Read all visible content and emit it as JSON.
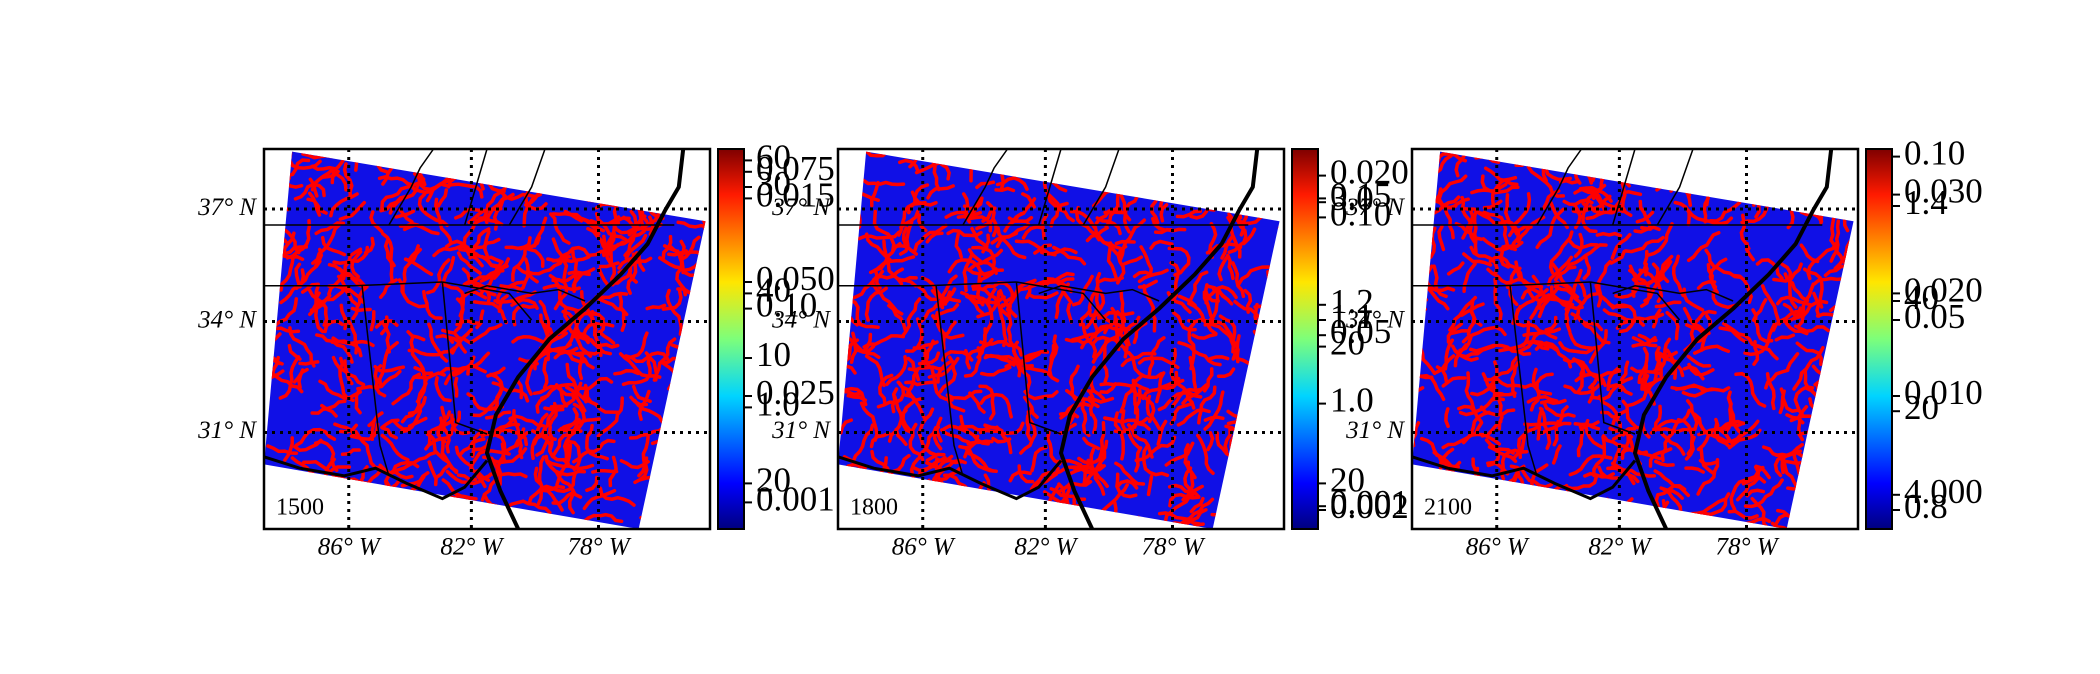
{
  "panels": [
    {
      "label": "1500",
      "lat_labels": [
        "37° N",
        "34° N",
        "31° N"
      ],
      "lon_labels": [
        "86° W",
        "82° W",
        "78° W"
      ],
      "colorbar_labels": [
        "60",
        "0.075",
        "30",
        "0.015",
        "0.050",
        "40",
        "0.10",
        "10",
        "0.025",
        "1.0",
        "20",
        "0.001"
      ]
    },
    {
      "label": "1800",
      "lat_labels": [
        "37° N",
        "34° N",
        "31° N"
      ],
      "lon_labels": [
        "86° W",
        "82° W",
        "78° W"
      ],
      "colorbar_labels": [
        "0.020",
        "3.0",
        "0.15",
        "0.10",
        "1.2",
        "1.1",
        "20",
        "0.05",
        "1.0",
        "20",
        "0.001",
        "0.002"
      ]
    },
    {
      "label": "2100",
      "lat_labels": [
        "37° N",
        "34° N",
        "31° N"
      ],
      "lon_labels": [
        "86° W",
        "82° W",
        "78° W"
      ],
      "colorbar_labels": [
        "0.10",
        "0.030",
        "1.4",
        "0.020",
        "40",
        "0.05",
        "0.010",
        "20",
        "4.000",
        "0.8"
      ]
    }
  ]
}
